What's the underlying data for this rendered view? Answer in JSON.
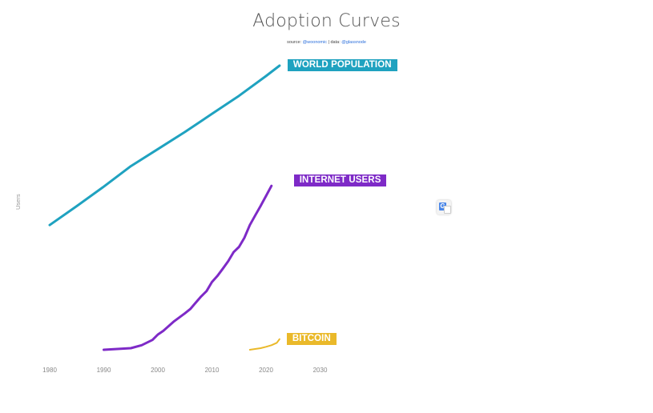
{
  "header": {
    "title": "Adoption Curves",
    "source_prefix": "source:",
    "source_handle": "@woonomic",
    "data_prefix": "| data:",
    "data_handle": "@glassnode"
  },
  "chart_data": {
    "type": "line",
    "title": "Adoption Curves",
    "ylabel": "Users",
    "xlabel": "",
    "x_ticks": [
      "1980",
      "1990",
      "2000",
      "2010",
      "2020",
      "2030"
    ],
    "xlim": [
      1980,
      2030
    ],
    "grid": false,
    "legend": "inline labels at line ends",
    "series": [
      {
        "name": "WORLD POPULATION",
        "color": "#1fa2c0",
        "x": [
          1980,
          1985,
          1990,
          1995,
          2000,
          2005,
          2010,
          2015,
          2020,
          2022.5
        ],
        "y": [
          0.468,
          0.539,
          0.612,
          0.689,
          0.753,
          0.817,
          0.885,
          0.953,
          1.027,
          1.066
        ]
      },
      {
        "name": "INTERNET USERS",
        "color": "#7e2ac7",
        "x": [
          1990,
          1995,
          1997,
          1999,
          2000,
          2001,
          2003,
          2005,
          2006,
          2007,
          2008,
          2009,
          2010,
          2011,
          2012,
          2013,
          2014,
          2015,
          2016,
          2017,
          2018,
          2019,
          2020,
          2021
        ],
        "y": [
          0.0,
          0.006,
          0.017,
          0.037,
          0.057,
          0.071,
          0.107,
          0.137,
          0.153,
          0.177,
          0.2,
          0.22,
          0.254,
          0.277,
          0.304,
          0.332,
          0.366,
          0.386,
          0.42,
          0.468,
          0.504,
          0.54,
          0.577,
          0.615
        ]
      },
      {
        "name": "BITCOIN",
        "color": "#eab92a",
        "x": [
          2017,
          2018,
          2019,
          2020,
          2021,
          2022,
          2022.5
        ],
        "y": [
          0.0,
          0.003,
          0.006,
          0.011,
          0.017,
          0.026,
          0.04
        ]
      }
    ]
  }
}
